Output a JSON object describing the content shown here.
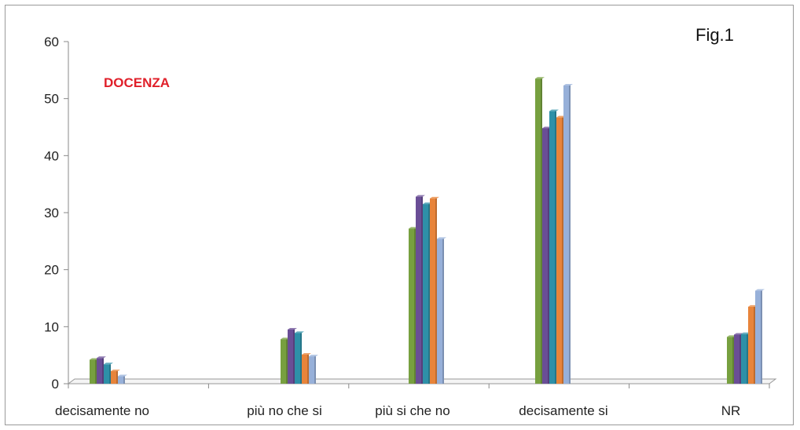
{
  "chart_data": {
    "type": "bar",
    "title": "DOCENZA",
    "figure_label": "Fig.1",
    "categories": [
      "decisamente no",
      "più no che si",
      "più si che no",
      "decisamente si",
      "NR"
    ],
    "ylim": [
      0,
      60
    ],
    "yticks": [
      0,
      10,
      20,
      30,
      40,
      50,
      60
    ],
    "grid": false,
    "legend": "none",
    "series": [
      {
        "color": "#77A03F",
        "values": [
          4.2,
          7.8,
          27.2,
          53.5,
          8.2
        ]
      },
      {
        "color": "#6A4E96",
        "values": [
          4.5,
          9.5,
          32.8,
          44.8,
          8.6
        ]
      },
      {
        "color": "#2E90A8",
        "values": [
          3.4,
          8.9,
          31.5,
          47.8,
          8.7
        ]
      },
      {
        "color": "#E8843A",
        "values": [
          2.2,
          5.1,
          32.5,
          46.7,
          13.5
        ]
      },
      {
        "color": "#97B0D9",
        "values": [
          1.3,
          4.8,
          25.4,
          52.3,
          16.3
        ]
      }
    ],
    "title_color": "#E0202A"
  }
}
